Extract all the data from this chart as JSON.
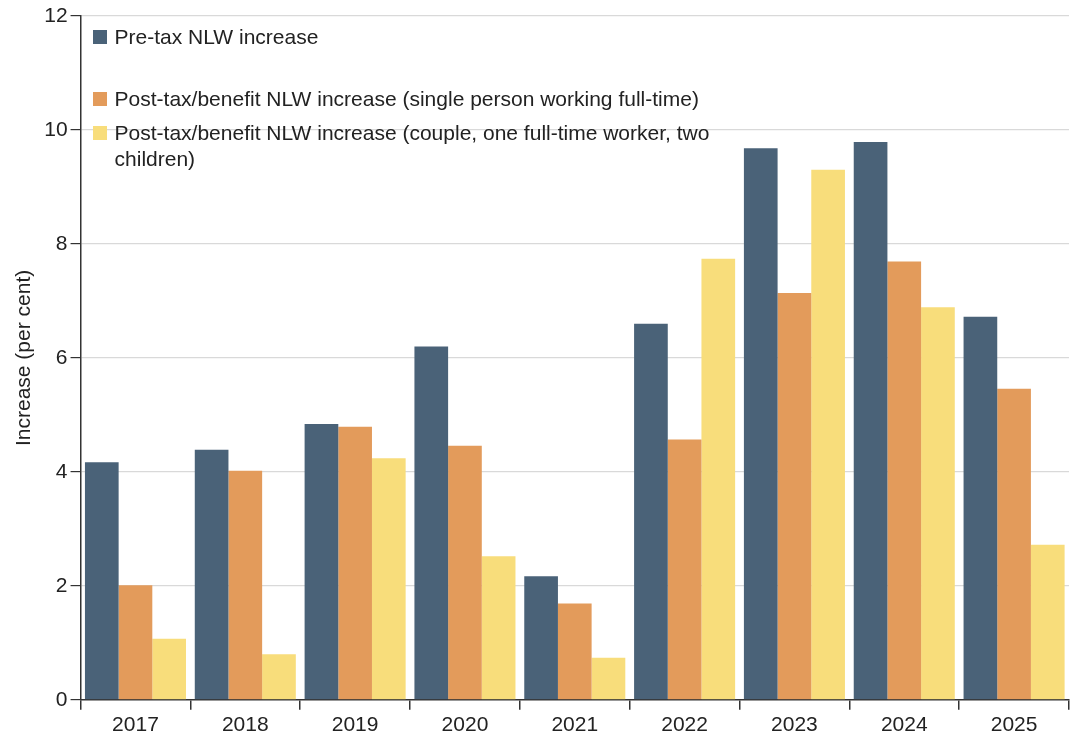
{
  "chart_data": {
    "type": "bar",
    "ylabel": "Increase (per cent)",
    "categories": [
      "2017",
      "2018",
      "2019",
      "2020",
      "2021",
      "2022",
      "2023",
      "2024",
      "2025"
    ],
    "series": [
      {
        "name": "Pre-tax NLW increase",
        "color": "#4a6278",
        "values": [
          4.17,
          4.39,
          4.84,
          6.2,
          2.17,
          6.6,
          9.68,
          9.79,
          6.72
        ]
      },
      {
        "name": "Post-tax/benefit NLW increase (single person working full-time)",
        "color": "#e39b5b",
        "values": [
          2.01,
          4.02,
          4.79,
          4.46,
          1.69,
          4.57,
          7.14,
          7.69,
          5.46
        ]
      },
      {
        "name": "Post-tax/benefit NLW increase (couple, one full-time worker, two children)",
        "color": "#f8dd7b",
        "values": [
          1.07,
          0.8,
          4.24,
          2.52,
          0.74,
          7.74,
          9.3,
          6.89,
          2.72
        ]
      }
    ],
    "ylim": [
      0,
      12
    ],
    "yticks": [
      0,
      2,
      4,
      6,
      8,
      10,
      12
    ],
    "grid": "y",
    "legend": "top left"
  }
}
